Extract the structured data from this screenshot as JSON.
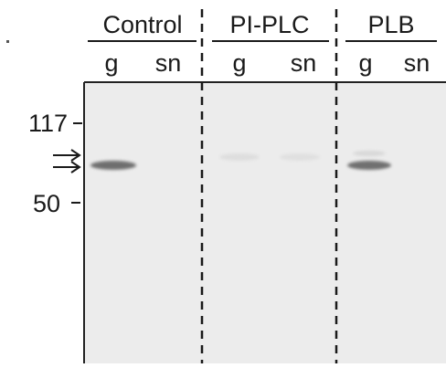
{
  "groups": [
    {
      "label": "Control",
      "lanes": [
        "g",
        "sn"
      ]
    },
    {
      "label": "PI-PLC",
      "lanes": [
        "g",
        "sn"
      ]
    },
    {
      "label": "PLB",
      "lanes": [
        "g",
        "sn"
      ]
    }
  ],
  "markers": [
    {
      "label": "117"
    },
    {
      "label": "50"
    }
  ]
}
